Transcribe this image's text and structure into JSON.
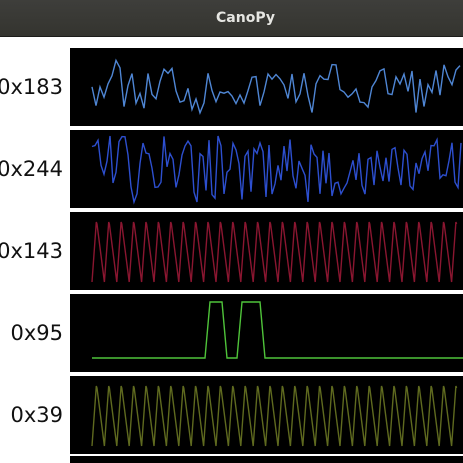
{
  "window": {
    "title": "CanoPy"
  },
  "plots": [
    {
      "label": "0x183",
      "color": "#4f86d4",
      "waveform": "noise-smooth"
    },
    {
      "label": "0x244",
      "color": "#2d4fcf",
      "waveform": "noise-sharp"
    },
    {
      "label": "0x143",
      "color": "#8a1630",
      "waveform": "sawtooth"
    },
    {
      "label": "0x95",
      "color": "#4fc43a",
      "waveform": "double-pulse"
    },
    {
      "label": "0x39",
      "color": "#5f6a1f",
      "waveform": "sawtooth"
    }
  ]
}
